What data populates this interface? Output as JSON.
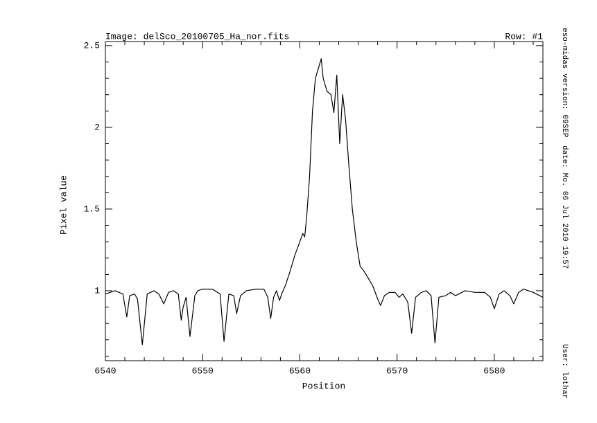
{
  "chart_data": {
    "type": "line",
    "title": "Image: delSco_20100705_Ha_nor.fits",
    "subtitle": "Row: #1",
    "x_label": "Position",
    "y_label": "Pixel value",
    "side_notes": [
      "eso-midas version: 09SEP",
      "date: Mo. 06 Jul 2010 19:57",
      "User: lothar"
    ],
    "xlim": [
      6540,
      6585
    ],
    "ylim": [
      0.572,
      2.525
    ],
    "xticks": [
      6540,
      6550,
      6560,
      6570,
      6580
    ],
    "yticks": [
      1,
      1.5,
      2,
      2.5
    ],
    "xminorticks": [
      6542,
      6544,
      6546,
      6548,
      6552,
      6554,
      6556,
      6558,
      6562,
      6564,
      6566,
      6568,
      6572,
      6574,
      6576,
      6578,
      6582,
      6584
    ],
    "yminorticks": [
      0.6,
      0.7,
      0.8,
      0.9,
      1.1,
      1.2,
      1.3,
      1.4,
      1.6,
      1.7,
      1.8,
      1.9,
      2.1,
      2.2,
      2.3,
      2.4
    ],
    "color": "#000000",
    "x": [
      6540,
      6541,
      6541.8,
      6542.2,
      6542.5,
      6543,
      6543.3,
      6543.8,
      6544.3,
      6545,
      6545.5,
      6546,
      6546.5,
      6547,
      6547.5,
      6547.8,
      6548,
      6548.3,
      6548.7,
      6549.2,
      6549.5,
      6550,
      6551,
      6551.8,
      6552.2,
      6552.7,
      6553.2,
      6553.5,
      6553.9,
      6554.5,
      6555.5,
      6556.3,
      6556.7,
      6557,
      6557.3,
      6557.6,
      6557.9,
      6558.2,
      6558.5,
      6559,
      6559.5,
      6560,
      6560.3,
      6560.5,
      6560.7,
      6561,
      6561.3,
      6561.6,
      6562,
      6562.2,
      6562.4,
      6562.8,
      6563.2,
      6563.5,
      6563.8,
      6564.1,
      6564.4,
      6564.7,
      6565,
      6565.4,
      6565.8,
      6566.2,
      6566.6,
      6567,
      6567.5,
      6568,
      6568.3,
      6568.7,
      6569.2,
      6569.8,
      6570.2,
      6570.6,
      6571.1,
      6571.5,
      6571.9,
      6572.5,
      6573,
      6573.5,
      6573.9,
      6574.3,
      6575,
      6575.5,
      6576,
      6577,
      6578,
      6579,
      6579.6,
      6580,
      6580.5,
      6581,
      6581.6,
      6582,
      6582.5,
      6583,
      6584,
      6585
    ],
    "values": [
      0.98,
      1.0,
      0.98,
      0.84,
      0.97,
      0.98,
      0.95,
      0.67,
      0.98,
      1.0,
      0.98,
      0.92,
      0.99,
      1.0,
      0.98,
      0.82,
      0.9,
      0.96,
      0.72,
      0.97,
      1.0,
      1.01,
      1.01,
      0.98,
      0.69,
      0.98,
      0.97,
      0.86,
      0.97,
      1.0,
      1.01,
      1.01,
      0.96,
      0.83,
      0.96,
      1.0,
      0.94,
      0.99,
      1.03,
      1.12,
      1.22,
      1.3,
      1.35,
      1.33,
      1.45,
      1.7,
      2.1,
      2.3,
      2.38,
      2.42,
      2.3,
      2.22,
      2.2,
      2.09,
      2.32,
      1.9,
      2.2,
      2.05,
      1.8,
      1.5,
      1.3,
      1.15,
      1.12,
      1.08,
      1.03,
      0.95,
      0.91,
      0.97,
      0.99,
      0.99,
      0.96,
      0.98,
      0.93,
      0.74,
      0.96,
      0.99,
      1.0,
      0.97,
      0.68,
      0.96,
      0.97,
      0.99,
      0.97,
      1.0,
      0.99,
      0.99,
      0.96,
      0.89,
      0.98,
      1.0,
      0.97,
      0.92,
      0.99,
      1.01,
      0.99,
      0.96
    ]
  }
}
